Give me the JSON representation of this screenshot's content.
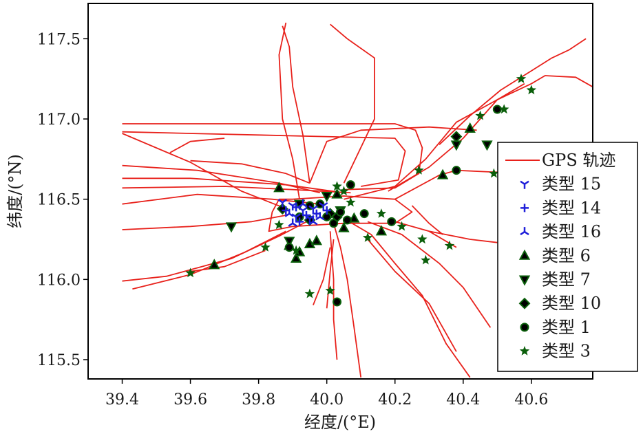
{
  "chart_data": {
    "type": "scatter",
    "xlabel": "经度/(°E)",
    "ylabel": "纬度/(°N)",
    "xlim": [
      39.3,
      40.78
    ],
    "ylim": [
      115.38,
      117.72
    ],
    "x_ticks": [
      "39.4",
      "39.6",
      "39.8",
      "40.0",
      "40.2",
      "40.4",
      "40.6"
    ],
    "y_ticks": [
      "115.5",
      "116.0",
      "116.5",
      "117.0",
      "117.5"
    ],
    "legend_position": "right",
    "track": {
      "name": "GPS 轨迹",
      "color": "#e8211b",
      "segments": [
        [
          [
            39.4,
            116.97
          ],
          [
            39.8,
            116.97
          ],
          [
            40.2,
            116.97
          ],
          [
            40.26,
            116.93
          ],
          [
            40.28,
            116.82
          ],
          [
            40.27,
            116.66
          ],
          [
            40.2,
            116.57
          ],
          [
            40.05,
            116.56
          ]
        ],
        [
          [
            39.4,
            116.92
          ],
          [
            39.8,
            116.9
          ],
          [
            40.2,
            116.88
          ],
          [
            40.23,
            116.8
          ],
          [
            40.21,
            116.62
          ],
          [
            40.1,
            116.58
          ]
        ],
        [
          [
            40.44,
            116.93
          ],
          [
            40.3,
            116.95
          ],
          [
            40.1,
            116.93
          ],
          [
            40.0,
            116.86
          ],
          [
            39.95,
            116.6
          ]
        ],
        [
          [
            39.4,
            116.91
          ],
          [
            39.6,
            116.73
          ],
          [
            39.75,
            116.55
          ],
          [
            39.87,
            116.45
          ]
        ],
        [
          [
            39.4,
            116.71
          ],
          [
            39.62,
            116.68
          ],
          [
            39.86,
            116.6
          ],
          [
            39.98,
            116.54
          ]
        ],
        [
          [
            39.4,
            116.63
          ],
          [
            39.6,
            116.63
          ],
          [
            39.88,
            116.59
          ],
          [
            40.05,
            116.54
          ]
        ],
        [
          [
            39.4,
            116.57
          ],
          [
            39.7,
            116.58
          ],
          [
            39.9,
            116.56
          ],
          [
            40.07,
            116.54
          ]
        ],
        [
          [
            39.4,
            116.47
          ],
          [
            39.62,
            116.53
          ],
          [
            39.84,
            116.5
          ],
          [
            39.98,
            116.47
          ]
        ],
        [
          [
            39.4,
            116.31
          ],
          [
            39.6,
            116.33
          ],
          [
            39.78,
            116.36
          ],
          [
            39.88,
            116.4
          ]
        ],
        [
          [
            39.4,
            115.99
          ],
          [
            39.53,
            116.02
          ],
          [
            39.72,
            116.13
          ],
          [
            39.86,
            116.27
          ],
          [
            39.95,
            116.37
          ]
        ],
        [
          [
            39.43,
            115.94
          ],
          [
            39.6,
            116.03
          ],
          [
            39.76,
            116.17
          ],
          [
            39.88,
            116.3
          ]
        ],
        [
          [
            39.54,
            116.79
          ],
          [
            39.6,
            116.86
          ],
          [
            39.7,
            116.88
          ]
        ],
        [
          [
            39.6,
            116.74
          ],
          [
            39.75,
            116.72
          ],
          [
            39.88,
            116.66
          ],
          [
            39.95,
            116.6
          ]
        ],
        [
          [
            39.88,
            117.6
          ],
          [
            39.86,
            117.4
          ],
          [
            39.87,
            117.0
          ],
          [
            39.9,
            116.75
          ],
          [
            39.92,
            116.5
          ]
        ],
        [
          [
            39.87,
            117.58
          ],
          [
            39.89,
            117.45
          ],
          [
            39.9,
            117.2
          ],
          [
            39.93,
            116.9
          ],
          [
            39.95,
            116.6
          ]
        ],
        [
          [
            40.01,
            117.59
          ],
          [
            40.06,
            117.5
          ],
          [
            40.14,
            117.38
          ],
          [
            40.14,
            117.0
          ],
          [
            40.05,
            116.6
          ]
        ],
        [
          [
            40.78,
            117.2
          ],
          [
            40.73,
            117.26
          ],
          [
            40.64,
            117.27
          ],
          [
            40.6,
            117.22
          ],
          [
            40.5,
            117.12
          ],
          [
            40.38,
            116.98
          ],
          [
            40.29,
            116.75
          ],
          [
            40.2,
            116.58
          ],
          [
            40.05,
            116.5
          ]
        ],
        [
          [
            40.76,
            117.5
          ],
          [
            40.71,
            117.43
          ],
          [
            40.66,
            117.38
          ],
          [
            40.6,
            117.3
          ],
          [
            40.51,
            117.18
          ],
          [
            40.42,
            117.02
          ],
          [
            40.33,
            116.84
          ]
        ],
        [
          [
            40.58,
            117.22
          ],
          [
            40.5,
            117.12
          ],
          [
            40.4,
            116.88
          ],
          [
            40.3,
            116.7
          ],
          [
            40.18,
            116.55
          ]
        ],
        [
          [
            40.62,
            116.66
          ],
          [
            40.48,
            116.67
          ],
          [
            40.38,
            116.68
          ],
          [
            40.33,
            116.65
          ],
          [
            40.2,
            116.5
          ]
        ],
        [
          [
            40.42,
            115.39
          ],
          [
            40.35,
            115.6
          ],
          [
            40.28,
            115.9
          ],
          [
            40.2,
            116.1
          ],
          [
            40.13,
            116.28
          ],
          [
            40.05,
            116.38
          ]
        ],
        [
          [
            40.38,
            115.55
          ],
          [
            40.3,
            115.85
          ],
          [
            40.2,
            116.05
          ],
          [
            40.12,
            116.25
          ]
        ],
        [
          [
            40.48,
            115.7
          ],
          [
            40.4,
            115.95
          ],
          [
            40.33,
            116.1
          ],
          [
            40.22,
            116.28
          ],
          [
            40.12,
            116.36
          ]
        ],
        [
          [
            40.1,
            115.39
          ],
          [
            40.08,
            115.7
          ],
          [
            40.06,
            116.0
          ],
          [
            40.04,
            116.2
          ],
          [
            40.02,
            116.35
          ]
        ],
        [
          [
            40.03,
            115.5
          ],
          [
            40.02,
            115.75
          ],
          [
            40.02,
            116.0
          ],
          [
            40.01,
            116.3
          ]
        ],
        [
          [
            39.96,
            115.84
          ],
          [
            39.99,
            116.0
          ],
          [
            40.01,
            116.2
          ]
        ],
        [
          [
            40.0,
            115.82
          ],
          [
            40.01,
            116.05
          ],
          [
            40.02,
            116.25
          ]
        ],
        [
          [
            39.86,
            116.5
          ],
          [
            39.84,
            116.42
          ],
          [
            39.83,
            116.3
          ],
          [
            39.9,
            116.33
          ],
          [
            40.05,
            116.35
          ],
          [
            40.2,
            116.35
          ],
          [
            40.25,
            116.42
          ],
          [
            40.2,
            116.5
          ],
          [
            40.05,
            116.52
          ],
          [
            39.9,
            116.5
          ],
          [
            39.86,
            116.5
          ]
        ],
        [
          [
            40.3,
            116.3
          ],
          [
            40.42,
            116.25
          ],
          [
            40.5,
            116.23
          ]
        ],
        [
          [
            40.2,
            116.36
          ],
          [
            40.3,
            116.3
          ],
          [
            40.38,
            116.2
          ]
        ],
        [
          [
            39.6,
            116.05
          ],
          [
            39.7,
            116.08
          ],
          [
            39.82,
            116.18
          ]
        ],
        [
          [
            40.25,
            116.46
          ],
          [
            40.3,
            116.35
          ],
          [
            40.34,
            116.28
          ]
        ]
      ]
    },
    "series": [
      {
        "name": "类型 15",
        "marker": "tri_down",
        "color": "#1f1fd9",
        "points": [
          [
            39.87,
            116.48
          ],
          [
            39.9,
            116.46
          ],
          [
            39.93,
            116.43
          ],
          [
            39.96,
            116.44
          ],
          [
            39.99,
            116.46
          ],
          [
            39.91,
            116.39
          ],
          [
            39.95,
            116.38
          ]
        ]
      },
      {
        "name": "类型 14",
        "marker": "plus",
        "color": "#1f1fd9",
        "points": [
          [
            39.88,
            116.43
          ],
          [
            39.91,
            116.45
          ],
          [
            39.94,
            116.4
          ],
          [
            39.97,
            116.41
          ],
          [
            40.0,
            116.43
          ],
          [
            39.92,
            116.36
          ]
        ]
      },
      {
        "name": "类型 16",
        "marker": "tri_up",
        "color": "#1f1fd9",
        "points": [
          [
            39.89,
            116.41
          ],
          [
            39.93,
            116.47
          ],
          [
            39.96,
            116.36
          ],
          [
            39.98,
            116.39
          ],
          [
            39.9,
            116.35
          ]
        ]
      },
      {
        "name": "类型 6",
        "marker": "triangle_up",
        "color": "#0a5e0a",
        "points": [
          [
            39.67,
            116.09
          ],
          [
            39.86,
            116.57
          ],
          [
            39.89,
            116.21
          ],
          [
            39.91,
            116.13
          ],
          [
            39.92,
            116.17
          ],
          [
            39.95,
            116.22
          ],
          [
            39.97,
            116.24
          ],
          [
            40.03,
            116.53
          ],
          [
            40.05,
            116.32
          ],
          [
            40.08,
            116.38
          ],
          [
            40.16,
            116.3
          ],
          [
            40.34,
            116.65
          ],
          [
            40.42,
            116.94
          ]
        ]
      },
      {
        "name": "类型 7",
        "marker": "triangle_down",
        "color": "#0a5e0a",
        "points": [
          [
            39.72,
            116.33
          ],
          [
            39.89,
            116.24
          ],
          [
            39.92,
            116.47
          ],
          [
            40.0,
            116.52
          ],
          [
            40.04,
            116.43
          ],
          [
            40.38,
            116.84
          ],
          [
            40.47,
            116.84
          ]
        ]
      },
      {
        "name": "类型 10",
        "marker": "diamond",
        "color": "#0a5e0a",
        "points": [
          [
            39.87,
            116.44
          ],
          [
            39.95,
            116.37
          ],
          [
            40.01,
            116.41
          ],
          [
            40.03,
            116.39
          ],
          [
            40.38,
            116.89
          ]
        ]
      },
      {
        "name": "类型 1",
        "marker": "circle",
        "color": "#0a5e0a",
        "points": [
          [
            39.89,
            116.2
          ],
          [
            39.92,
            116.39
          ],
          [
            39.95,
            116.46
          ],
          [
            39.98,
            116.47
          ],
          [
            40.0,
            116.39
          ],
          [
            40.02,
            116.35
          ],
          [
            40.04,
            116.42
          ],
          [
            40.06,
            116.37
          ],
          [
            40.07,
            116.59
          ],
          [
            40.11,
            116.41
          ],
          [
            40.19,
            116.36
          ],
          [
            40.03,
            115.86
          ],
          [
            40.38,
            116.68
          ],
          [
            40.5,
            117.06
          ]
        ]
      },
      {
        "name": "类型 3",
        "marker": "star",
        "color": "#0a5e0a",
        "points": [
          [
            39.6,
            116.04
          ],
          [
            39.82,
            116.2
          ],
          [
            39.86,
            116.34
          ],
          [
            39.91,
            116.18
          ],
          [
            39.95,
            115.91
          ],
          [
            40.01,
            115.93
          ],
          [
            40.03,
            116.58
          ],
          [
            40.05,
            116.55
          ],
          [
            40.07,
            116.48
          ],
          [
            40.12,
            116.26
          ],
          [
            40.16,
            116.41
          ],
          [
            40.22,
            116.33
          ],
          [
            40.28,
            116.25
          ],
          [
            40.29,
            116.12
          ],
          [
            40.27,
            116.68
          ],
          [
            40.36,
            116.21
          ],
          [
            40.45,
            117.02
          ],
          [
            40.49,
            116.66
          ],
          [
            40.52,
            117.06
          ],
          [
            40.57,
            117.25
          ],
          [
            40.6,
            117.18
          ]
        ]
      }
    ]
  }
}
